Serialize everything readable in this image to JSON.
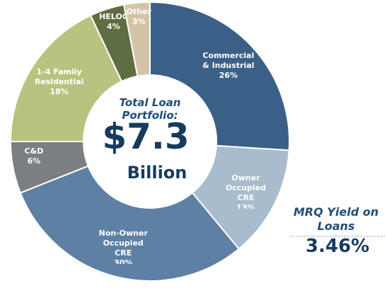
{
  "chart_data": {
    "type": "donut",
    "categories": [
      "Commercial & Industrial",
      "Owner Occupied CRE",
      "Non-Owner Occupied CRE",
      "C&D",
      "1-4 Family Residential",
      "HELOC",
      "Other"
    ],
    "values": [
      26,
      13,
      30,
      6,
      18,
      4,
      3
    ],
    "value_labels": [
      "26%",
      "13%",
      "30%",
      "6%",
      "18%",
      "4%",
      "3%"
    ],
    "colors": [
      "#3b6088",
      "#a8bccd",
      "#5e80a4",
      "#7c7f81",
      "#b8c37f",
      "#5f6d42",
      "#d4c4a7"
    ],
    "center_label": {
      "caption": "Total Loan Portfolio:",
      "value": "$7.3",
      "unit": "Billion"
    },
    "annotation": {
      "label": "MRQ Yield on Loans",
      "value": "3.46%"
    }
  }
}
